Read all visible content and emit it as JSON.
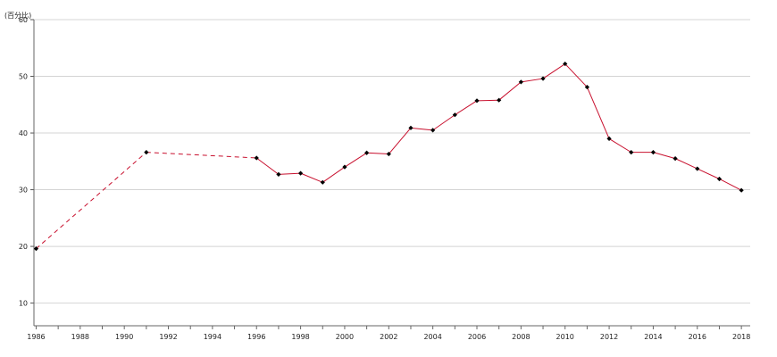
{
  "chart_data": {
    "type": "line",
    "title": "",
    "xlabel": "",
    "ylabel": "(百分比)",
    "xlim": [
      1985.9,
      2018.4
    ],
    "ylim": [
      6,
      60
    ],
    "yticks": [
      10,
      20,
      30,
      40,
      50,
      60
    ],
    "xticks": [
      1986,
      1988,
      1990,
      1992,
      1994,
      1996,
      1998,
      2000,
      2002,
      2004,
      2006,
      2008,
      2010,
      2012,
      2014,
      2016,
      2018
    ],
    "grid": "horizontal",
    "legend": "none",
    "line_color": "#c8102e",
    "marker_color": "#000000",
    "series": [
      {
        "x": [
          1986,
          1991,
          1996,
          1997,
          1998,
          1999,
          2000,
          2001,
          2002,
          2003,
          2004,
          2005,
          2006,
          2007,
          2008,
          2009,
          2010,
          2011,
          2012,
          2013,
          2014,
          2015,
          2016,
          2017,
          2018
        ],
        "values": [
          19.6,
          36.6,
          35.6,
          32.7,
          32.9,
          31.3,
          34.0,
          36.5,
          36.3,
          40.9,
          40.5,
          43.2,
          45.7,
          45.8,
          49.0,
          49.6,
          52.2,
          48.1,
          39.0,
          36.6,
          36.6,
          35.5,
          33.7,
          31.9,
          29.9
        ],
        "dashed_segments_until": 1996
      }
    ]
  }
}
